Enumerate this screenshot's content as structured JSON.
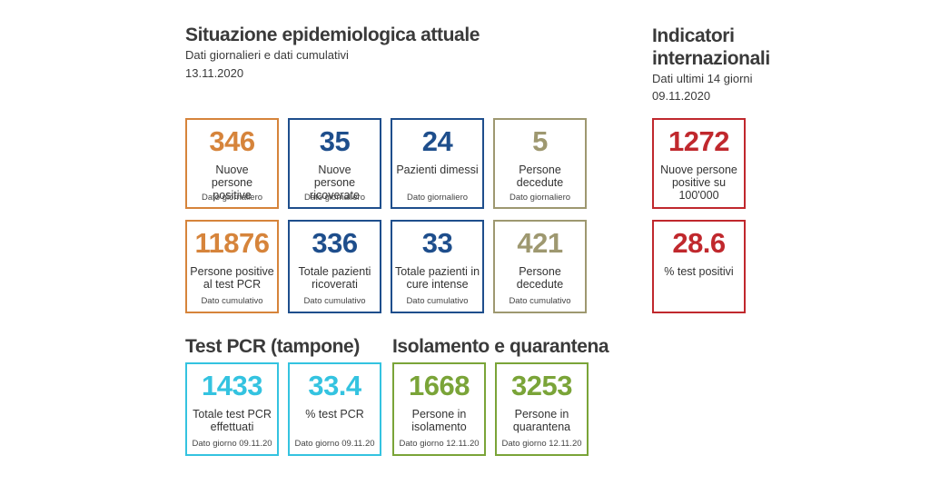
{
  "situation": {
    "title": "Situazione epidemiologica attuale",
    "subtitle": "Dati giornalieri e dati cumulativi",
    "date": "13.11.2020"
  },
  "international": {
    "title_line1": "Indicatori",
    "title_line2": "internazionali",
    "subtitle": "Dati ultimi 14 giorni",
    "date": "09.11.2020"
  },
  "test_section": {
    "title": "Test PCR (tampone)"
  },
  "isolation_section": {
    "title": "Isolamento e quarantena"
  },
  "colors": {
    "orange": "#d6843b",
    "navy": "#1e4e8c",
    "olive": "#9e9870",
    "red": "#c0282d",
    "cyan": "#34c3e0",
    "green": "#7aa438"
  },
  "daily": [
    {
      "value": "346",
      "label": "Nuove persone positive",
      "note": "Dato giornaliero"
    },
    {
      "value": "35",
      "label": "Nuove persone ricoverate",
      "note": "Dato giornaliero"
    },
    {
      "value": "24",
      "label": "Pazienti dimessi",
      "note": "Dato giornaliero"
    },
    {
      "value": "5",
      "label": "Persone decedute",
      "note": "Dato giornaliero"
    }
  ],
  "cumulative": [
    {
      "value": "11876",
      "label": "Persone positive al test PCR",
      "note": "Dato cumulativo"
    },
    {
      "value": "336",
      "label": "Totale pazienti ricoverati",
      "note": "Dato cumulativo"
    },
    {
      "value": "33",
      "label": "Totale pazienti in cure intense",
      "note": "Dato cumulativo"
    },
    {
      "value": "421",
      "label": "Persone decedute",
      "note": "Dato cumulativo"
    }
  ],
  "international_cards": [
    {
      "value": "1272",
      "label": "Nuove persone positive su 100'000"
    },
    {
      "value": "28.6",
      "label": "% test positivi"
    }
  ],
  "tests": [
    {
      "value": "1433",
      "label": "Totale test PCR effettuati",
      "note": "Dato giorno 09.11.20"
    },
    {
      "value": "33.4",
      "label": "% test PCR",
      "note": "Dato giorno 09.11.20"
    }
  ],
  "isolation": [
    {
      "value": "1668",
      "label": "Persone in isolamento",
      "note": "Dato giorno 12.11.20"
    },
    {
      "value": "3253",
      "label": "Persone in quarantena",
      "note": "Dato giorno 12.11.20"
    }
  ]
}
